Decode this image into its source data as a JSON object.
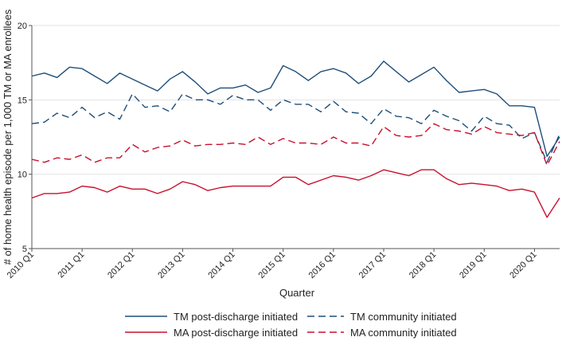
{
  "chart_data": {
    "type": "line",
    "title": "",
    "xlabel": "Quarter",
    "ylabel": "# of home health episode per 1,000 TM or MA enrollees",
    "ylim": [
      5,
      20
    ],
    "yticks": [
      5,
      10,
      15,
      20
    ],
    "x": [
      "2010 Q1",
      "2010 Q2",
      "2010 Q3",
      "2010 Q4",
      "2011 Q1",
      "2011 Q2",
      "2011 Q3",
      "2011 Q4",
      "2012 Q1",
      "2012 Q2",
      "2012 Q3",
      "2012 Q4",
      "2013 Q1",
      "2013 Q2",
      "2013 Q3",
      "2013 Q4",
      "2014 Q1",
      "2014 Q2",
      "2014 Q3",
      "2014 Q4",
      "2015 Q1",
      "2015 Q2",
      "2015 Q3",
      "2015 Q4",
      "2016 Q1",
      "2016 Q2",
      "2016 Q3",
      "2016 Q4",
      "2017 Q1",
      "2017 Q2",
      "2017 Q3",
      "2017 Q4",
      "2018 Q1",
      "2018 Q2",
      "2018 Q3",
      "2018 Q4",
      "2019 Q1",
      "2019 Q2",
      "2019 Q3",
      "2019 Q4",
      "2020 Q1",
      "2020 Q2",
      "2020 Q3"
    ],
    "xtick_labels": [
      "2010 Q1",
      "2011 Q1",
      "2012 Q1",
      "2013 Q1",
      "2014 Q1",
      "2015 Q1",
      "2016 Q1",
      "2017 Q1",
      "2018 Q1",
      "2019 Q1",
      "2020 Q1"
    ],
    "grid": "horizontal",
    "legend_position": "bottom",
    "series": [
      {
        "name": "TM post-discharge initiated",
        "color": "#1f4e79",
        "dash": "solid",
        "values": [
          16.6,
          16.8,
          16.5,
          17.2,
          17.1,
          16.6,
          16.1,
          16.8,
          16.4,
          16.0,
          15.6,
          16.4,
          16.9,
          16.2,
          15.4,
          15.8,
          15.8,
          16.0,
          15.5,
          15.8,
          17.3,
          16.9,
          16.3,
          16.9,
          17.1,
          16.8,
          16.1,
          16.6,
          17.6,
          16.9,
          16.2,
          16.7,
          17.2,
          16.3,
          15.5,
          15.6,
          15.7,
          15.4,
          14.6,
          14.6,
          14.5,
          11.2,
          12.5
        ]
      },
      {
        "name": "MA post-discharge initiated",
        "color": "#c8102e",
        "dash": "solid",
        "values": [
          8.4,
          8.7,
          8.7,
          8.8,
          9.2,
          9.1,
          8.8,
          9.2,
          9.0,
          9.0,
          8.7,
          9.0,
          9.5,
          9.3,
          8.9,
          9.1,
          9.2,
          9.2,
          9.2,
          9.2,
          9.8,
          9.8,
          9.3,
          9.6,
          9.9,
          9.8,
          9.6,
          9.9,
          10.3,
          10.1,
          9.9,
          10.3,
          10.3,
          9.7,
          9.3,
          9.4,
          9.3,
          9.2,
          8.9,
          9.0,
          8.8,
          7.1,
          8.4
        ]
      },
      {
        "name": "TM community initiated",
        "color": "#1f4e79",
        "dash": "dashed",
        "values": [
          13.4,
          13.5,
          14.1,
          13.8,
          14.5,
          13.8,
          14.2,
          13.7,
          15.4,
          14.5,
          14.6,
          14.2,
          15.4,
          15.0,
          15.0,
          14.7,
          15.3,
          15.0,
          15.0,
          14.3,
          15.0,
          14.7,
          14.7,
          14.2,
          14.9,
          14.2,
          14.1,
          13.4,
          14.4,
          13.9,
          13.8,
          13.4,
          14.3,
          13.9,
          13.6,
          12.9,
          13.9,
          13.4,
          13.3,
          12.4,
          12.8,
          10.8,
          12.7
        ]
      },
      {
        "name": "MA community initiated",
        "color": "#c8102e",
        "dash": "dashed",
        "values": [
          11.0,
          10.8,
          11.1,
          11.0,
          11.3,
          10.8,
          11.1,
          11.1,
          12.0,
          11.5,
          11.8,
          11.9,
          12.3,
          11.9,
          12.0,
          12.0,
          12.1,
          12.0,
          12.5,
          12.0,
          12.4,
          12.1,
          12.1,
          12.0,
          12.5,
          12.1,
          12.1,
          11.9,
          13.2,
          12.6,
          12.5,
          12.6,
          13.4,
          13.0,
          12.9,
          12.7,
          13.2,
          12.8,
          12.7,
          12.6,
          12.8,
          10.6,
          12.2
        ]
      }
    ]
  }
}
